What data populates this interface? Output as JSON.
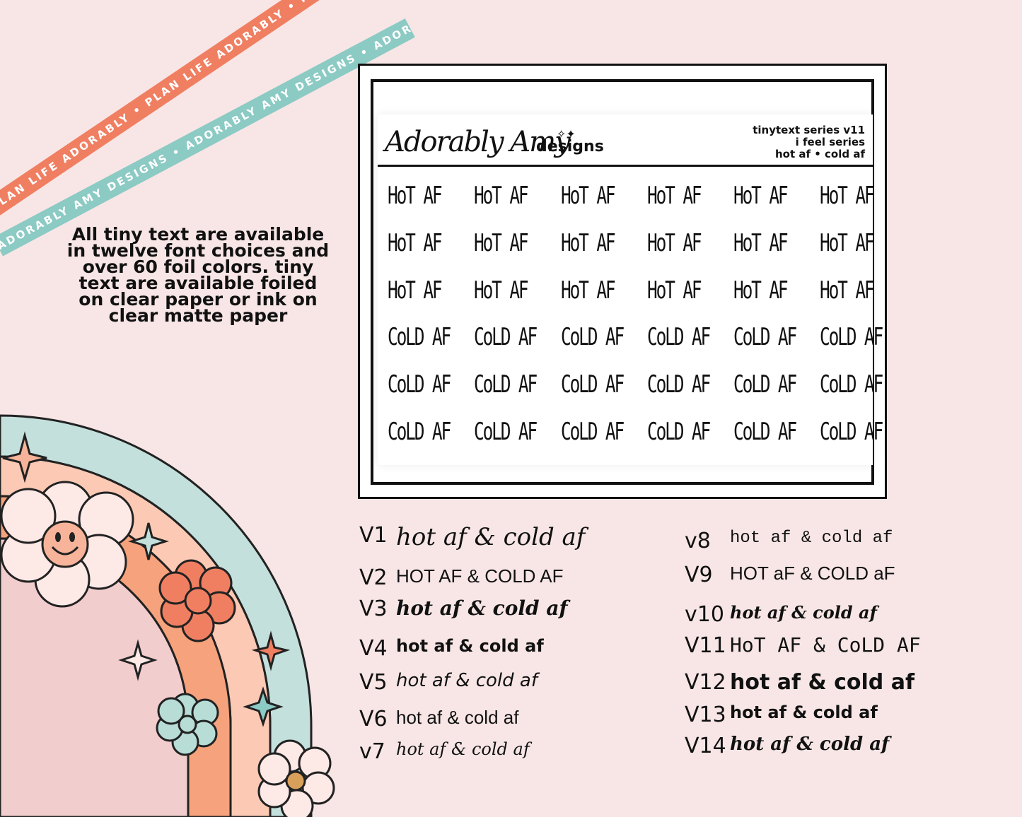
{
  "ribbons": {
    "orange": "PLAN LIFE ADORABLY • PLAN LIFE ADORABLY • PLAN LIFE ADORABLY •",
    "mint": "ADORABLY AMY DESIGNS • ADORABLY AMY DESIGNS • ADORABLY AMY DESIGNS •"
  },
  "description": "All tiny text are available in twelve font choices and over 60 foil colors.  tiny text are available foiled on clear paper or ink on clear matte paper",
  "sheet": {
    "brand_script": "Adorably Amy",
    "brand_word": "designs",
    "meta": [
      "tinytext series v11",
      "i feel series",
      "hot af • cold af"
    ],
    "rows": [
      [
        "HoT AF",
        "HoT AF",
        "HoT AF",
        "HoT AF",
        "HoT AF",
        "HoT AF"
      ],
      [
        "HoT AF",
        "HoT AF",
        "HoT AF",
        "HoT AF",
        "HoT AF",
        "HoT AF"
      ],
      [
        "HoT AF",
        "HoT AF",
        "HoT AF",
        "HoT AF",
        "HoT AF",
        "HoT AF"
      ],
      [
        "CoLD AF",
        "CoLD AF",
        "CoLD AF",
        "CoLD AF",
        "CoLD AF",
        "CoLD AF"
      ],
      [
        "CoLD AF",
        "CoLD AF",
        "CoLD AF",
        "CoLD AF",
        "CoLD AF",
        "CoLD AF"
      ],
      [
        "CoLD AF",
        "CoLD AF",
        "CoLD AF",
        "CoLD AF",
        "CoLD AF",
        "CoLD AF"
      ]
    ]
  },
  "versions_left": [
    {
      "label": "V1",
      "text": "hot af & cold af"
    },
    {
      "label": "V2",
      "text": "HOT AF & COLD AF"
    },
    {
      "label": "V3",
      "text": "hot af & cold af"
    },
    {
      "label": "V4",
      "text": "hot af & cold af"
    },
    {
      "label": "V5",
      "text": "hot af & cold af"
    },
    {
      "label": "V6",
      "text": "hot af & cold af"
    },
    {
      "label": "v7",
      "text": "hot af & cold af"
    }
  ],
  "versions_right": [
    {
      "label": "v8",
      "text": "hot af & cold af"
    },
    {
      "label": "V9",
      "text": "HOT aF & COLD aF"
    },
    {
      "label": "v10",
      "text": "hot af & cold af"
    },
    {
      "label": "V11",
      "text": "HoT AF & CoLD AF"
    },
    {
      "label": "V12",
      "text": "hot af & cold af"
    },
    {
      "label": "V13",
      "text": "hot af & cold af"
    },
    {
      "label": "V14",
      "text": "hot af & cold af"
    }
  ],
  "colors": {
    "background": "#f8e6e6",
    "ribbon_orange": "#f07f62",
    "ribbon_mint": "#8ccac4",
    "rainbow_mint": "#c3e0dc",
    "rainbow_peach": "#fbc9b4",
    "rainbow_orange": "#f6a27c",
    "rainbow_pink": "#f2cdcd"
  }
}
